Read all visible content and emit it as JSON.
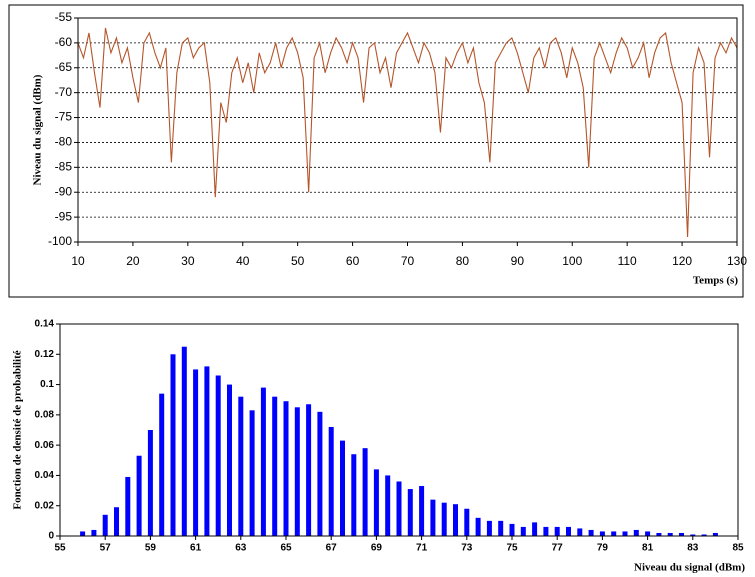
{
  "chart_data": [
    {
      "type": "line",
      "x_label": "Temps (s)",
      "y_label": "Niveau du signal (dBm)",
      "x": [
        10,
        11,
        12,
        13,
        14,
        15,
        16,
        17,
        18,
        19,
        20,
        21,
        22,
        23,
        24,
        25,
        26,
        27,
        28,
        29,
        30,
        31,
        32,
        33,
        34,
        35,
        36,
        37,
        38,
        39,
        40,
        41,
        42,
        43,
        44,
        45,
        46,
        47,
        48,
        49,
        50,
        51,
        52,
        53,
        54,
        55,
        56,
        57,
        58,
        59,
        60,
        61,
        62,
        63,
        64,
        65,
        66,
        67,
        68,
        69,
        70,
        71,
        72,
        73,
        74,
        75,
        76,
        77,
        78,
        79,
        80,
        81,
        82,
        83,
        84,
        85,
        86,
        87,
        88,
        89,
        90,
        91,
        92,
        93,
        94,
        95,
        96,
        97,
        98,
        99,
        100,
        101,
        102,
        103,
        104,
        105,
        106,
        107,
        108,
        109,
        110,
        111,
        112,
        113,
        114,
        115,
        116,
        117,
        118,
        119,
        120,
        121,
        122,
        123,
        124,
        125,
        126,
        127,
        128,
        129,
        130
      ],
      "series": [
        {
          "name": "Niveau du signal",
          "color": "#b5552a",
          "values": [
            -60,
            -63,
            -58,
            -66,
            -73,
            -57,
            -62,
            -59,
            -64,
            -61,
            -67,
            -72,
            -60,
            -58,
            -62,
            -65,
            -61,
            -84,
            -66,
            -60,
            -59,
            -63,
            -61,
            -60,
            -68,
            -91,
            -72,
            -76,
            -66,
            -63,
            -68,
            -64,
            -70,
            -62,
            -66,
            -64,
            -60,
            -65,
            -61,
            -59,
            -62,
            -67,
            -90,
            -63,
            -60,
            -66,
            -62,
            -59,
            -61,
            -64,
            -60,
            -63,
            -72,
            -61,
            -60,
            -66,
            -63,
            -69,
            -62,
            -60,
            -58,
            -61,
            -64,
            -60,
            -62,
            -66,
            -78,
            -63,
            -65,
            -62,
            -60,
            -64,
            -61,
            -68,
            -72,
            -84,
            -64,
            -62,
            -60,
            -59,
            -62,
            -66,
            -70,
            -63,
            -61,
            -65,
            -60,
            -59,
            -62,
            -67,
            -61,
            -64,
            -69,
            -85,
            -63,
            -60,
            -63,
            -66,
            -62,
            -59,
            -61,
            -65,
            -63,
            -60,
            -67,
            -62,
            -59,
            -58,
            -64,
            -68,
            -72,
            -99,
            -66,
            -61,
            -64,
            -83,
            -63,
            -60,
            -62,
            -59,
            -61
          ]
        }
      ],
      "xlim": [
        10,
        130
      ],
      "xticks": [
        10,
        20,
        30,
        40,
        50,
        60,
        70,
        80,
        90,
        100,
        110,
        120,
        130
      ],
      "ylim": [
        -100,
        -55
      ],
      "yticks": [
        -55,
        -60,
        -65,
        -70,
        -75,
        -80,
        -85,
        -90,
        -95,
        -100
      ],
      "grid": true
    },
    {
      "type": "bar",
      "x_label": "Niveau du signal (dBm)",
      "y_label": "Fonction de densité de probabilité",
      "x": [
        56,
        56.5,
        57,
        57.5,
        58,
        58.5,
        59,
        59.5,
        60,
        60.5,
        61,
        61.5,
        62,
        62.5,
        63,
        63.5,
        64,
        64.5,
        65,
        65.5,
        66,
        66.5,
        67,
        67.5,
        68,
        68.5,
        69,
        69.5,
        70,
        70.5,
        71,
        71.5,
        72,
        72.5,
        73,
        73.5,
        74,
        74.5,
        75,
        75.5,
        76,
        76.5,
        77,
        77.5,
        78,
        78.5,
        79,
        79.5,
        80,
        80.5,
        81,
        81.5,
        82,
        82.5,
        83,
        83.5,
        84
      ],
      "values": [
        0.003,
        0.004,
        0.014,
        0.019,
        0.039,
        0.053,
        0.07,
        0.094,
        0.12,
        0.125,
        0.11,
        0.112,
        0.106,
        0.1,
        0.092,
        0.083,
        0.098,
        0.092,
        0.089,
        0.085,
        0.087,
        0.082,
        0.072,
        0.063,
        0.054,
        0.058,
        0.044,
        0.04,
        0.036,
        0.031,
        0.033,
        0.024,
        0.022,
        0.021,
        0.018,
        0.012,
        0.01,
        0.01,
        0.008,
        0.006,
        0.009,
        0.006,
        0.006,
        0.006,
        0.005,
        0.004,
        0.003,
        0.003,
        0.003,
        0.004,
        0.003,
        0.002,
        0.002,
        0.002,
        0.001,
        0.001,
        0.002
      ],
      "color": "#0000ff",
      "xlim": [
        55,
        85
      ],
      "xticks": [
        55,
        57,
        59,
        61,
        63,
        65,
        67,
        69,
        71,
        73,
        75,
        77,
        79,
        81,
        83,
        85
      ],
      "ylim": [
        0,
        0.14
      ],
      "yticks": [
        0,
        0.02,
        0.04,
        0.06,
        0.08,
        0.1,
        0.12,
        0.14
      ],
      "grid": false
    }
  ]
}
